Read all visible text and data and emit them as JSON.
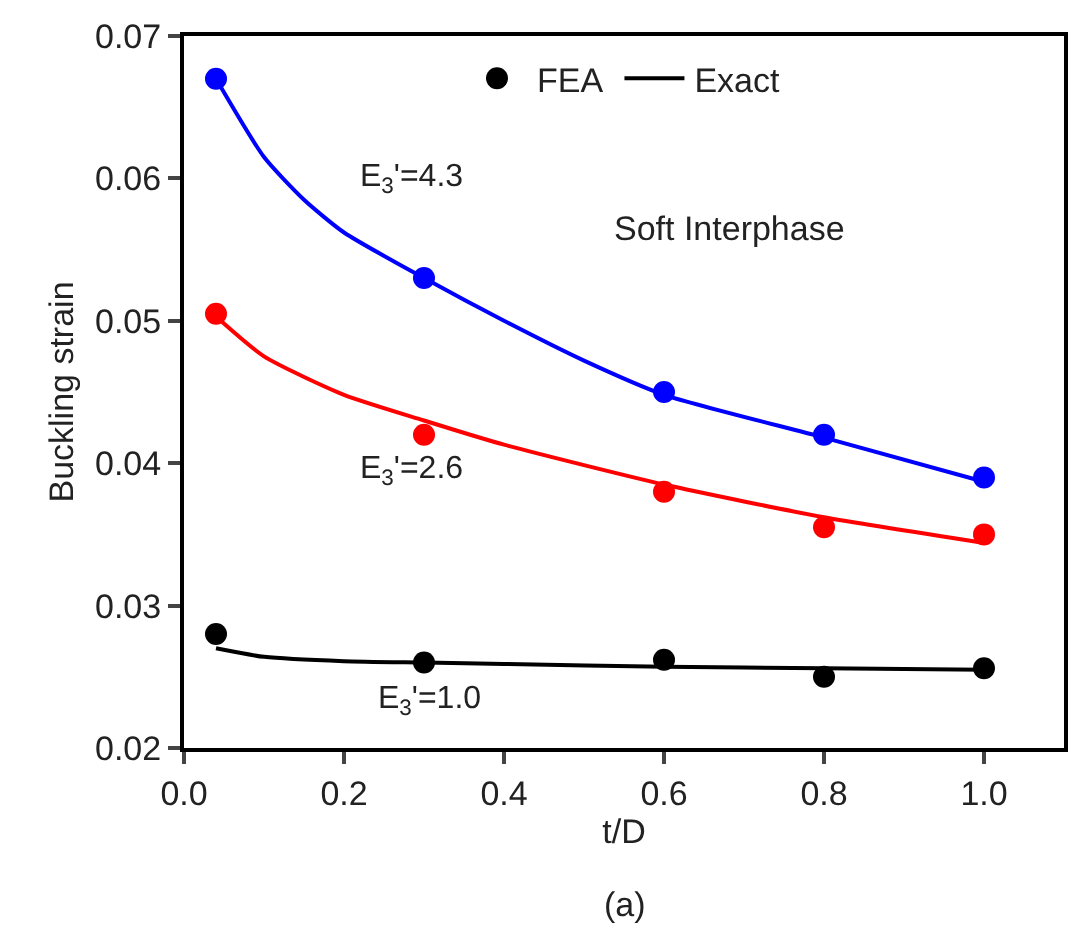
{
  "chart_data": {
    "type": "scatter",
    "xlabel": "t/D",
    "ylabel": "Buckling strain",
    "xlim": [
      0,
      1.1
    ],
    "xticks": [
      {
        "value": 0,
        "label": "0.0"
      },
      0.2,
      0.4,
      0.6,
      0.8,
      {
        "value": 1,
        "label": "1.0"
      }
    ],
    "ylim": [
      0.02,
      0.07
    ],
    "yticks": [
      {
        "value": 0.02,
        "label": "0.02"
      },
      {
        "value": 0.03,
        "label": "0.03"
      },
      {
        "value": 0.04,
        "label": "0.04"
      },
      {
        "value": 0.05,
        "label": "0.05"
      },
      {
        "value": 0.06,
        "label": "0.06"
      },
      {
        "value": 0.07,
        "label": "0.07"
      }
    ],
    "grid": false,
    "legend": "top",
    "line_style": "solid",
    "series": [
      {
        "type": "scatter",
        "name": "FEA",
        "color": "#000000",
        "marker": "circle",
        "x": [
          0.04,
          0.3,
          0.6,
          0.8,
          1.0
        ],
        "values": [
          0.028,
          0.026,
          0.0262,
          0.025,
          0.0256
        ]
      },
      {
        "type": "line",
        "name": "Exact",
        "color": "#000000",
        "x": [
          0.04,
          0.1,
          0.2,
          0.3,
          0.4,
          0.6,
          0.8,
          1.0
        ],
        "values": [
          0.027,
          0.0264,
          0.0261,
          0.026,
          0.0259,
          0.0257,
          0.0256,
          0.0255
        ]
      },
      {
        "type": "scatter",
        "color": "#ff0000",
        "marker": "circle",
        "x": [
          0.04,
          0.3,
          0.6,
          0.8,
          1.0
        ],
        "values": [
          0.0505,
          0.042,
          0.038,
          0.0355,
          0.035
        ]
      },
      {
        "type": "line",
        "color": "#ff0000",
        "x": [
          0.04,
          0.1,
          0.2,
          0.3,
          0.4,
          0.6,
          0.8,
          1.0
        ],
        "values": [
          0.0503,
          0.0475,
          0.0448,
          0.043,
          0.0413,
          0.0385,
          0.0362,
          0.0344
        ]
      },
      {
        "type": "scatter",
        "color": "#0000ff",
        "marker": "circle",
        "x": [
          0.04,
          0.3,
          0.6,
          0.8,
          1.0
        ],
        "values": [
          0.067,
          0.053,
          0.045,
          0.042,
          0.039
        ]
      },
      {
        "type": "line",
        "color": "#0000ff",
        "x": [
          0.04,
          0.1,
          0.15,
          0.2,
          0.3,
          0.4,
          0.5,
          0.6,
          0.8,
          1.0
        ],
        "values": [
          0.067,
          0.0615,
          0.0585,
          0.0562,
          0.053,
          0.05,
          0.0472,
          0.0448,
          0.0418,
          0.0387
        ]
      }
    ],
    "annotations": [
      "E$_{3}$'=4.3",
      "E$_{3}$'=2.6",
      "E$_{3}$'=1.0",
      "Soft Interphase",
      "(a)"
    ]
  }
}
